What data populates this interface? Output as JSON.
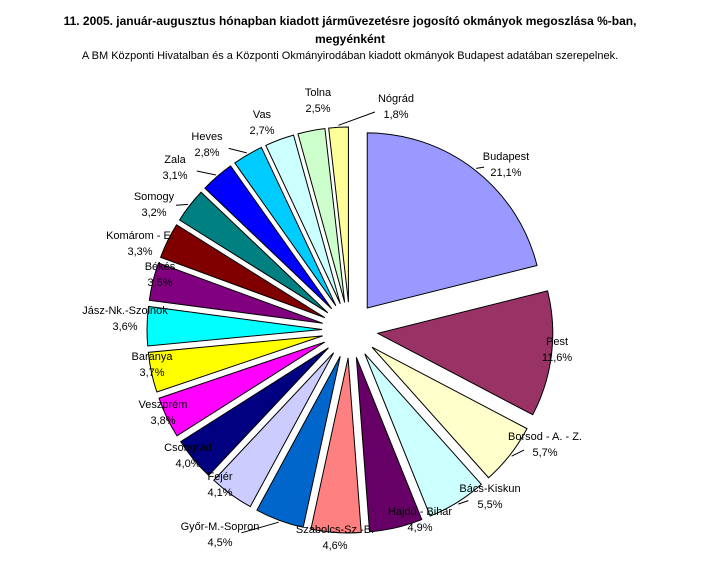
{
  "chart_data": {
    "type": "pie",
    "title_line1": "11. 2005. január-augusztus hónapban kiadott járművezetésre jogosító okmányok megoszlása %-ban,",
    "title_line2": "megyénként",
    "subtitle": "A BM Központi Hivatalban és a Központi Okmányirodában kiadott okmányok Budapest adatában szerepelnek.",
    "unit": "%",
    "slices": [
      {
        "name": "Budapest",
        "value_text": "21,1%",
        "value": 21.1,
        "color": "#9999FF"
      },
      {
        "name": "Pest",
        "value_text": "11,6%",
        "value": 11.6,
        "color": "#993366"
      },
      {
        "name": "Borsod - A. - Z.",
        "value_text": "5,7%",
        "value": 5.7,
        "color": "#FFFFCC"
      },
      {
        "name": "Bács-Kiskun",
        "value_text": "5,5%",
        "value": 5.5,
        "color": "#CCFFFF"
      },
      {
        "name": "Hajdú - Bihar",
        "value_text": "4,9%",
        "value": 4.9,
        "color": "#660066"
      },
      {
        "name": "Szabolcs-Sz.-B.",
        "value_text": "4,6%",
        "value": 4.6,
        "color": "#FF8080"
      },
      {
        "name": "Győr-M.-Sopron",
        "value_text": "4,5%",
        "value": 4.5,
        "color": "#0066CC"
      },
      {
        "name": "Fejér",
        "value_text": "4,1%",
        "value": 4.1,
        "color": "#CCCCFF"
      },
      {
        "name": "Csongrád",
        "value_text": "4,0%",
        "value": 4.0,
        "color": "#000080"
      },
      {
        "name": "Veszprém",
        "value_text": "3,8%",
        "value": 3.8,
        "color": "#FF00FF"
      },
      {
        "name": "Baranya",
        "value_text": "3,7%",
        "value": 3.7,
        "color": "#FFFF00"
      },
      {
        "name": "Jász-Nk.-Szolnok",
        "value_text": "3,6%",
        "value": 3.6,
        "color": "#00FFFF"
      },
      {
        "name": "Békés",
        "value_text": "3,5%",
        "value": 3.5,
        "color": "#800080"
      },
      {
        "name": "Komárom - E.",
        "value_text": "3,3%",
        "value": 3.3,
        "color": "#800000"
      },
      {
        "name": "Somogy",
        "value_text": "3,2%",
        "value": 3.2,
        "color": "#008080"
      },
      {
        "name": "Zala",
        "value_text": "3,1%",
        "value": 3.1,
        "color": "#0000FF"
      },
      {
        "name": "Heves",
        "value_text": "2,8%",
        "value": 2.8,
        "color": "#00CCFF"
      },
      {
        "name": "Vas",
        "value_text": "2,7%",
        "value": 2.7,
        "color": "#CCFFFF"
      },
      {
        "name": "Tolna",
        "value_text": "2,5%",
        "value": 2.5,
        "color": "#CCFFCC"
      },
      {
        "name": "Nógrád",
        "value_text": "1,8%",
        "value": 1.8,
        "color": "#FFFF99"
      }
    ]
  }
}
